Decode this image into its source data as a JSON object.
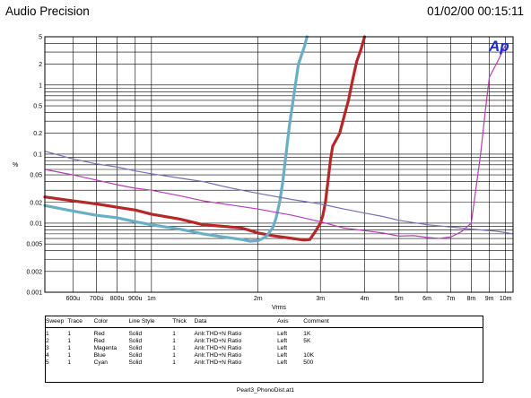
{
  "header": {
    "app_title": "Audio Precision",
    "timestamp": "01/02/00 00:15:11"
  },
  "logo_text": "Ap",
  "colors": {
    "red": "#b52828",
    "cyan": "#6aaec6",
    "magenta": "#b43db4",
    "blue": "#7a6fb5",
    "logo": "#1c2ed0"
  },
  "chart_data": {
    "type": "line",
    "xlabel": "Vrms",
    "ylabel": "%",
    "x_scale": "log",
    "y_scale": "log",
    "xlim": [
      0.0005,
      0.0105
    ],
    "ylim": [
      0.001,
      5
    ],
    "grid": true,
    "x_ticks": [
      {
        "value": 0.0006,
        "label": "600u"
      },
      {
        "value": 0.0007,
        "label": "700u"
      },
      {
        "value": 0.0008,
        "label": "800u"
      },
      {
        "value": 0.0009,
        "label": "900u"
      },
      {
        "value": 0.001,
        "label": "1m"
      },
      {
        "value": 0.002,
        "label": "2m"
      },
      {
        "value": 0.003,
        "label": "3m"
      },
      {
        "value": 0.004,
        "label": "4m"
      },
      {
        "value": 0.005,
        "label": "5m"
      },
      {
        "value": 0.006,
        "label": "6m"
      },
      {
        "value": 0.007,
        "label": "7m"
      },
      {
        "value": 0.008,
        "label": "8m"
      },
      {
        "value": 0.009,
        "label": "9m"
      },
      {
        "value": 0.01,
        "label": "10m"
      }
    ],
    "y_ticks": [
      {
        "value": 5,
        "label": "5"
      },
      {
        "value": 2,
        "label": "2"
      },
      {
        "value": 1,
        "label": "1"
      },
      {
        "value": 0.5,
        "label": "0.5"
      },
      {
        "value": 0.2,
        "label": "0.2"
      },
      {
        "value": 0.1,
        "label": "0.1"
      },
      {
        "value": 0.05,
        "label": "0.05"
      },
      {
        "value": 0.02,
        "label": "0.02"
      },
      {
        "value": 0.01,
        "label": "0.01"
      },
      {
        "value": 0.005,
        "label": "0.005"
      },
      {
        "value": 0.002,
        "label": "0.002"
      },
      {
        "value": 0.001,
        "label": "0.001"
      }
    ],
    "series": [
      {
        "color": "red",
        "width": 3.2,
        "points": [
          [
            0.0005,
            0.024
          ],
          [
            0.0006,
            0.021
          ],
          [
            0.0007,
            0.019
          ],
          [
            0.0008,
            0.017
          ],
          [
            0.0009,
            0.0155
          ],
          [
            0.001,
            0.0135
          ],
          [
            0.0012,
            0.0115
          ],
          [
            0.0014,
            0.0095
          ],
          [
            0.0016,
            0.009
          ],
          [
            0.0018,
            0.0085
          ],
          [
            0.002,
            0.0072
          ],
          [
            0.0022,
            0.0066
          ],
          [
            0.0025,
            0.006
          ],
          [
            0.0027,
            0.0057
          ],
          [
            0.0028,
            0.0058
          ],
          [
            0.0029,
            0.0075
          ],
          [
            0.003,
            0.01
          ],
          [
            0.00305,
            0.013
          ],
          [
            0.0031,
            0.02
          ],
          [
            0.00315,
            0.04
          ],
          [
            0.0032,
            0.08
          ],
          [
            0.00325,
            0.13
          ],
          [
            0.0034,
            0.2
          ],
          [
            0.0035,
            0.35
          ],
          [
            0.0036,
            0.6
          ],
          [
            0.0037,
            1.2
          ],
          [
            0.0038,
            2.2
          ],
          [
            0.0039,
            3.2
          ],
          [
            0.004,
            5
          ]
        ]
      },
      {
        "color": "cyan",
        "width": 3.2,
        "points": [
          [
            0.0005,
            0.018
          ],
          [
            0.0006,
            0.015
          ],
          [
            0.0007,
            0.013
          ],
          [
            0.0008,
            0.012
          ],
          [
            0.0009,
            0.0105
          ],
          [
            0.001,
            0.0095
          ],
          [
            0.0012,
            0.0082
          ],
          [
            0.0014,
            0.007
          ],
          [
            0.0016,
            0.0063
          ],
          [
            0.0018,
            0.0058
          ],
          [
            0.0019,
            0.0055
          ],
          [
            0.002,
            0.0056
          ],
          [
            0.0021,
            0.0063
          ],
          [
            0.0022,
            0.0085
          ],
          [
            0.00225,
            0.012
          ],
          [
            0.0023,
            0.02
          ],
          [
            0.00235,
            0.04
          ],
          [
            0.0024,
            0.1
          ],
          [
            0.00245,
            0.25
          ],
          [
            0.0025,
            0.5
          ],
          [
            0.00255,
            1
          ],
          [
            0.0026,
            2
          ],
          [
            0.0027,
            3.5
          ],
          [
            0.00275,
            5
          ]
        ]
      },
      {
        "color": "magenta",
        "width": 1.2,
        "points": [
          [
            0.0005,
            0.06
          ],
          [
            0.0006,
            0.05
          ],
          [
            0.0007,
            0.042
          ],
          [
            0.0008,
            0.036
          ],
          [
            0.0009,
            0.032
          ],
          [
            0.001,
            0.03
          ],
          [
            0.0012,
            0.025
          ],
          [
            0.0014,
            0.021
          ],
          [
            0.0016,
            0.019
          ],
          [
            0.002,
            0.016
          ],
          [
            0.0025,
            0.013
          ],
          [
            0.003,
            0.0105
          ],
          [
            0.0035,
            0.0085
          ],
          [
            0.004,
            0.0078
          ],
          [
            0.0045,
            0.0072
          ],
          [
            0.005,
            0.0065
          ],
          [
            0.0055,
            0.0066
          ],
          [
            0.006,
            0.0062
          ],
          [
            0.0065,
            0.006
          ],
          [
            0.007,
            0.0063
          ],
          [
            0.0075,
            0.0075
          ],
          [
            0.008,
            0.01
          ],
          [
            0.0085,
            0.1
          ],
          [
            0.0088,
            0.5
          ],
          [
            0.009,
            1.3
          ],
          [
            0.0095,
            2.2
          ],
          [
            0.01,
            3.8
          ]
        ]
      },
      {
        "color": "blue",
        "width": 1.2,
        "points": [
          [
            0.0005,
            0.11
          ],
          [
            0.0006,
            0.085
          ],
          [
            0.0007,
            0.072
          ],
          [
            0.0008,
            0.065
          ],
          [
            0.0009,
            0.057
          ],
          [
            0.001,
            0.052
          ],
          [
            0.0012,
            0.045
          ],
          [
            0.0014,
            0.04
          ],
          [
            0.0016,
            0.034
          ],
          [
            0.0018,
            0.03
          ],
          [
            0.002,
            0.027
          ],
          [
            0.0025,
            0.022
          ],
          [
            0.003,
            0.019
          ],
          [
            0.0035,
            0.016
          ],
          [
            0.004,
            0.014
          ],
          [
            0.0045,
            0.0125
          ],
          [
            0.005,
            0.011
          ],
          [
            0.006,
            0.0095
          ],
          [
            0.007,
            0.0088
          ],
          [
            0.008,
            0.0082
          ],
          [
            0.009,
            0.0078
          ],
          [
            0.0095,
            0.0076
          ],
          [
            0.0105,
            0.007
          ]
        ]
      }
    ]
  },
  "legend": {
    "headers": [
      "Sweep",
      "Trace",
      "Color",
      "Line Style",
      "Thick",
      "Data",
      "Axis",
      "Comment"
    ],
    "rows": [
      [
        "1",
        "1",
        "Red",
        "Solid",
        "1",
        "Anlr.THD+N Ratio",
        "Left",
        "1K"
      ],
      [
        "2",
        "1",
        "Red",
        "Solid",
        "1",
        "Anlr.THD+N Ratio",
        "Left",
        "5K"
      ],
      [
        "3",
        "1",
        "Magenta",
        "Solid",
        "1",
        "Anlr.THD+N Ratio",
        "Left",
        ""
      ],
      [
        "4",
        "1",
        "Blue",
        "Solid",
        "1",
        "Anlr.THD+N Ratio",
        "Left",
        "10K"
      ],
      [
        "5",
        "1",
        "Cyan",
        "Solid",
        "1",
        "Anlr.THD+N Ratio",
        "Left",
        "500"
      ]
    ]
  },
  "footer": "Pearl3_PhonoDist.at1"
}
